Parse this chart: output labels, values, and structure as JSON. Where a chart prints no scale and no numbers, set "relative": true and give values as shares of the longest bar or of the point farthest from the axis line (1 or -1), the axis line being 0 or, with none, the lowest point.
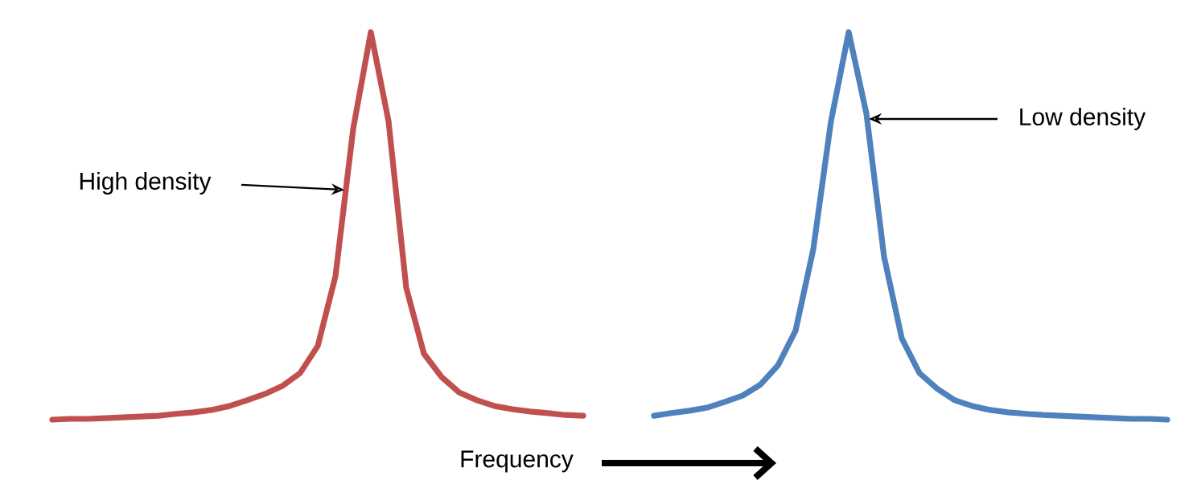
{
  "chart_data": {
    "type": "line",
    "relative": true,
    "xlabel": "Frequency",
    "annotations": [
      "High density",
      "Low density"
    ],
    "categories": [
      null,
      null,
      null,
      null,
      null,
      null,
      null,
      null,
      null,
      null,
      null,
      null,
      null,
      null,
      null,
      null,
      null,
      null,
      null,
      null,
      null,
      null,
      null,
      null,
      null,
      null,
      null,
      null,
      null,
      null,
      null,
      null,
      null,
      null,
      null,
      null,
      null,
      null,
      null,
      null,
      null,
      null,
      null,
      null,
      null,
      null,
      null,
      null,
      null,
      null,
      null,
      null,
      null,
      null,
      null,
      null,
      null,
      null,
      null,
      null,
      null,
      null,
      null,
      null
    ],
    "series": [
      {
        "color": "#c0504d",
        "values": [
          0,
          0.002,
          0.002,
          0.004,
          0.006,
          0.008,
          0.01,
          0.015,
          0.019,
          0.025,
          0.035,
          0.05,
          0.066,
          0.087,
          0.12,
          0.19,
          0.37,
          0.75,
          1,
          0.77,
          0.34,
          0.17,
          0.11,
          0.07,
          0.05,
          0.035,
          0.027,
          0.021,
          0.017,
          0.012,
          0.01,
          null,
          null,
          null,
          null,
          null,
          null,
          null,
          null,
          null,
          null,
          null,
          null,
          null,
          null,
          null,
          null,
          null,
          null,
          null,
          null,
          null,
          null,
          null,
          null,
          null,
          null,
          null,
          null,
          null,
          null,
          null,
          null,
          null
        ]
      },
      {
        "color": "#4f81bd",
        "values": [
          null,
          null,
          null,
          null,
          null,
          null,
          null,
          null,
          null,
          null,
          null,
          null,
          null,
          null,
          null,
          null,
          null,
          null,
          null,
          null,
          null,
          null,
          null,
          null,
          null,
          null,
          null,
          null,
          null,
          null,
          null,
          null,
          null,
          null,
          0.01,
          0.017,
          0.023,
          0.031,
          0.046,
          0.062,
          0.09,
          0.14,
          0.23,
          0.44,
          0.77,
          1,
          0.79,
          0.42,
          0.21,
          0.12,
          0.08,
          0.05,
          0.035,
          0.025,
          0.019,
          0.015,
          0.012,
          0.01,
          0.008,
          0.006,
          0.004,
          0.002,
          0.002,
          0
        ]
      }
    ]
  }
}
